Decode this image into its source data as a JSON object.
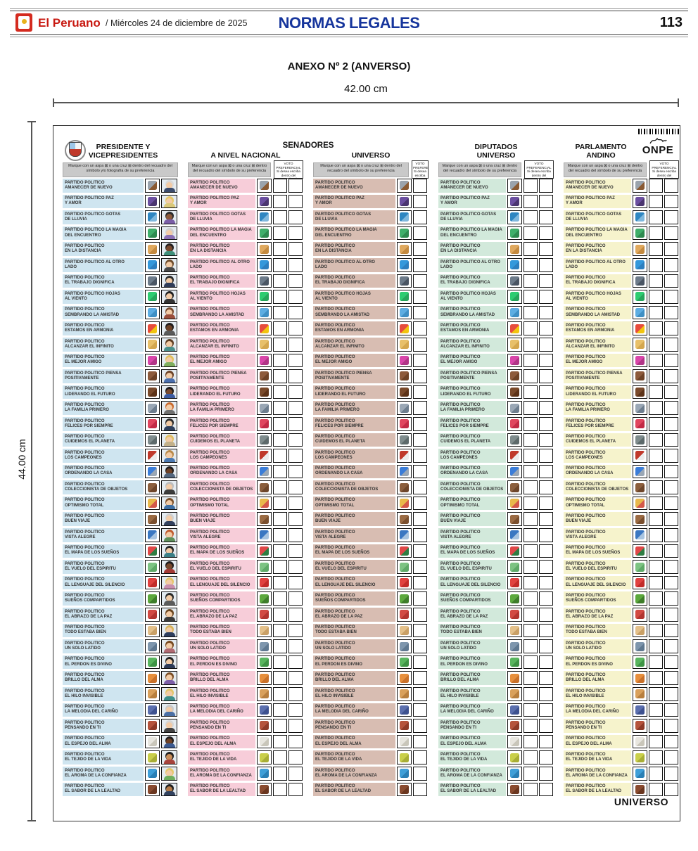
{
  "header": {
    "newspaper": "El Peruano",
    "date": "/ Miércoles 24 de diciembre de 2025",
    "section": "NORMAS LEGALES",
    "page_number": "113"
  },
  "title": "ANEXO Nº 2 (ANVERSO)",
  "dimensions": {
    "width_label": "42.00  cm",
    "height_label": "44.00  cm"
  },
  "ballot": {
    "group_header": "SENADORES",
    "footer_label": "UNIVERSO",
    "onpe_label": "ONPE",
    "instructions": {
      "symbol_photo": "Marque con un aspa ⊠ o una cruz ⊞ dentro del recuadro del símbolo y/o fotografía de su preferencia",
      "symbol": "Marque con un aspa ⊠ o una cruz ⊞ dentro del recuadro del símbolo de su preferencia"
    },
    "preferential_note": "VOTO PREFERENCIAL Si desea escriba dentro del recuadro el número del candidato de su preferencia",
    "columns": [
      {
        "key": "presidente",
        "title_lines": [
          "PRESIDENTE Y",
          "VICEPRESIDENTES"
        ],
        "bg": "#cfe5f0",
        "pref_boxes": 0,
        "has_photo": true,
        "instruction": "symbol_photo",
        "coat_of_arms": true
      },
      {
        "key": "senadores-nacional",
        "title_lines": [
          "A NIVEL NACIONAL"
        ],
        "bg": "#f7cdd9",
        "pref_boxes": 2,
        "has_photo": false,
        "instruction": "symbol"
      },
      {
        "key": "senadores-universo",
        "title_lines": [
          "UNIVERSO"
        ],
        "bg": "#d8bdb2",
        "pref_boxes": 1,
        "has_photo": false,
        "instruction": "symbol"
      },
      {
        "key": "diputados-universo",
        "title_lines": [
          "DIPUTADOS",
          "UNIVERSO"
        ],
        "bg": "#d2e9db",
        "pref_boxes": 2,
        "has_photo": false,
        "instruction": "symbol"
      },
      {
        "key": "parlamento-andino",
        "title_lines": [
          "PARLAMENTO",
          "ANDINO"
        ],
        "bg": "#f6f3cc",
        "pref_boxes": 2,
        "has_photo": false,
        "instruction": "symbol",
        "onpe": true,
        "barcode": true
      }
    ],
    "parties": [
      {
        "l1": "PARTIDO POLITICO",
        "l2": "AMANECER DE NUEVO",
        "icon": "handsaw-icon",
        "c1": "#9aa3ad",
        "c2": "#8a5a33",
        "skin": "#f2cba6",
        "hair": "#d8d8d8",
        "shirt": "#3a4a6b"
      },
      {
        "l1": "PARTIDO POLITICO PAZ",
        "l2": "Y AMOR",
        "icon": "umbrella-icon",
        "c1": "#6b4fa0",
        "c2": "#4a3570",
        "skin": "#f2cba6",
        "hair": "#e7c766",
        "shirt": "#d9c879"
      },
      {
        "l1": "PARTIDO POLITICO GOTAS",
        "l2": "DE LLUVIA",
        "icon": "bucket-icon",
        "c1": "#2e86c1",
        "c2": "#7fb8dd",
        "skin": "#8d5a3b",
        "hair": "#2b2b2b",
        "shirt": "#7b5ea7"
      },
      {
        "l1": "PARTIDO POLITICO LA MAGIA",
        "l2": "DEL ENCUENTRO",
        "icon": "tshirt-icon",
        "c1": "#3fae6a",
        "c2": "#2e8a50",
        "skin": "#f2cba6",
        "hair": "#cfcfcf",
        "shirt": "#8a6fb3"
      },
      {
        "l1": "PARTIDO POLITICO",
        "l2": "EN LA DISTANCIA",
        "icon": "bread-icon",
        "c1": "#e0a95e",
        "c2": "#c48a3f",
        "skin": "#7a4a2e",
        "hair": "#241f1f",
        "shirt": "#3f8f7a"
      },
      {
        "l1": "PARTIDO POLITICO AL OTRO",
        "l2": "LADO",
        "icon": "blue-panel-icon",
        "c1": "#3498db",
        "c2": "#2d7fbf",
        "skin": "#f2cba6",
        "hair": "#6e4b2a",
        "shirt": "#474747"
      },
      {
        "l1": "PARTIDO POLITICO",
        "l2": "EL TRABAJO DIGNIFICA",
        "icon": "hammer-icon",
        "c1": "#6d7b8a",
        "c2": "#4a5563",
        "skin": "#f2cba6",
        "hair": "#2b2b2b",
        "shirt": "#2f3c58"
      },
      {
        "l1": "PARTIDO POLITICO HOJAS",
        "l2": "AL VIENTO",
        "icon": "clover-icon",
        "c1": "#2ecc71",
        "c2": "#27a65c",
        "skin": "#f2cba6",
        "hair": "#1f1f1f",
        "shirt": "#333333"
      },
      {
        "l1": "PARTIDO POLITICO",
        "l2": "SEMBRANDO LA AMISTAD",
        "icon": "socks-icon",
        "c1": "#5dade2",
        "c2": "#3f8fc4",
        "skin": "#f2cba6",
        "hair": "#7a4a2e",
        "shirt": "#9c4f3c"
      },
      {
        "l1": "PARTIDO POLITICO",
        "l2": "ESTAMOS EN ARMONIA",
        "icon": "firecracker-icon",
        "c1": "#e74c3c",
        "c2": "#f1c40f",
        "skin": "#6f4226",
        "hair": "#211d1d",
        "shirt": "#5a5a5a"
      },
      {
        "l1": "PARTIDO POLITICO",
        "l2": "ALCANZAR EL INFINITO",
        "icon": "hand-icon",
        "c1": "#e8c06a",
        "c2": "#d4a74f",
        "skin": "#f2cba6",
        "hair": "#5f3d22",
        "shirt": "#4a8f8a"
      },
      {
        "l1": "PARTIDO POLITICO",
        "l2": "EL MEJOR AMIGO",
        "icon": "butterfly-icon",
        "c1": "#d946aa",
        "c2": "#b13587",
        "skin": "#f2cba6",
        "hair": "#e3c05c",
        "shirt": "#7fae5e"
      },
      {
        "l1": "PARTIDO POLITICO PIENSA",
        "l2": "POSITIVAMENTE",
        "icon": "monkey-icon",
        "c1": "#8d5a3b",
        "c2": "#6e4226",
        "skin": "#f2cba6",
        "hair": "#6b4226",
        "shirt": "#4a6fae"
      },
      {
        "l1": "PARTIDO POLITICO",
        "l2": "LIDERANDO EL FUTURO",
        "icon": "violin-icon",
        "c1": "#7a4a2b",
        "c2": "#5d3318",
        "skin": "#7a4a2e",
        "hair": "#1f1b1b",
        "shirt": "#3b5aa0"
      },
      {
        "l1": "PARTIDO POLITICO",
        "l2": "LA FAMILIA PRIMERO",
        "icon": "sneaker-icon",
        "c1": "#9aa7b5",
        "c2": "#6d7d8e",
        "skin": "#f2cba6",
        "hair": "#c96a2e",
        "shirt": "#707070"
      },
      {
        "l1": "PARTIDO POLITICO",
        "l2": "FELICES POR SIEMPRE",
        "icon": "telephone-receiver-icon",
        "c1": "#e0455e",
        "c2": "#c22a45",
        "skin": "#f2cba6",
        "hair": "#2a2a2a",
        "shirt": "#2e3f5c"
      },
      {
        "l1": "PARTIDO POLITICO",
        "l2": "CUIDEMOS EL PLANETA",
        "icon": "bicycle-icon",
        "c1": "#7f8c8d",
        "c2": "#5d6a6b",
        "skin": "#f2cba6",
        "hair": "#e0be62",
        "shirt": "#c2b089"
      },
      {
        "l1": "PARTIDO POLITICO",
        "l2": "LOS CAMPEONES",
        "icon": "target-icon",
        "c1": "#c0392b",
        "c2": "#ececec",
        "skin": "#f2cba6",
        "hair": "#b98a4a",
        "shirt": "#4a78b0"
      },
      {
        "l1": "PARTIDO POLITICO",
        "l2": "ORDENANDO LA CASA",
        "icon": "airplane-icon",
        "c1": "#3b7dd8",
        "c2": "#9aa7b5",
        "skin": "#6f4226",
        "hair": "#1f1b1b",
        "shirt": "#53677f"
      },
      {
        "l1": "PARTIDO POLITICO",
        "l2": "COLECCIONISTA DE OBJETOS",
        "icon": "briefcase-icon",
        "c1": "#8b5e3c",
        "c2": "#6e462a",
        "skin": "#f2cba6",
        "hair": "#bdbdbd",
        "shirt": "#3c3c3c"
      },
      {
        "l1": "PARTIDO POLITICO",
        "l2": "OPTIMISMO TOTAL",
        "icon": "crayons-icon",
        "c1": "#e8b84b",
        "c2": "#d3584a",
        "skin": "#f2cba6",
        "hair": "#7c4f28",
        "shirt": "#3e6fa3"
      },
      {
        "l1": "PARTIDO POLITICO",
        "l2": "BUEN VIAJE",
        "icon": "bear-icon",
        "c1": "#9b6b43",
        "c2": "#7a4f2e",
        "skin": "#f2cba6",
        "hair": "#cfcfcf",
        "shirt": "#33415e"
      },
      {
        "l1": "PARTIDO POLITICO",
        "l2": "VISTA ALEGRE",
        "icon": "monitor-icon",
        "c1": "#3a77c2",
        "c2": "#a8c4e0",
        "skin": "#f2cba6",
        "hair": "#c05a2e",
        "shirt": "#5e8f5a"
      },
      {
        "l1": "PARTIDO POLITICO",
        "l2": "EL MAPA DE LOS SUEÑOS",
        "icon": "watermelon-icon",
        "c1": "#e04848",
        "c2": "#2e7d42",
        "skin": "#f2cba6",
        "hair": "#242424",
        "shirt": "#3a7f86"
      },
      {
        "l1": "PARTIDO POLITICO",
        "l2": "EL VUELO DEL ESPIRITU",
        "icon": "alien-icon",
        "c1": "#7dc383",
        "c2": "#5ea967",
        "skin": "#7a4a2e",
        "hair": "#1f1b1b",
        "shirt": "#a43a35"
      },
      {
        "l1": "PARTIDO POLITICO",
        "l2": "EL LENGUAJE DEL SILENCIO",
        "icon": "balloon-icon",
        "c1": "#e0413f",
        "c2": "#c22b29",
        "skin": "#f2cba6",
        "hair": "#e5c468",
        "shirt": "#c98fae"
      },
      {
        "l1": "PARTIDO POLITICO",
        "l2": "SUEÑOS COMPARTIDOS",
        "icon": "avocado-icon",
        "c1": "#5ca83d",
        "c2": "#3e7d2a",
        "skin": "#f2cba6",
        "hair": "#2a2a2a",
        "shirt": "#5b5b5b"
      },
      {
        "l1": "PARTIDO POLITICO",
        "l2": "EL ABRAZO DE LA PAZ",
        "icon": "sweater-icon",
        "c1": "#d24a43",
        "c2": "#b23530",
        "skin": "#f2cba6",
        "hair": "#6a451f",
        "shirt": "#3a3a3a"
      },
      {
        "l1": "PARTIDO POLITICO",
        "l2": "TODO ESTABA BIEN",
        "icon": "cookie-icon",
        "c1": "#e3c08a",
        "c2": "#c9a066",
        "skin": "#f2cba6",
        "hair": "#d9b45a",
        "shirt": "#2e3e5e"
      },
      {
        "l1": "PARTIDO POLITICO",
        "l2": "UN SOLO LATIDO",
        "icon": "cat-icon",
        "c1": "#7e96ad",
        "c2": "#5f7890",
        "skin": "#f2cba6",
        "hair": "#76481f",
        "shirt": "#b06a72"
      },
      {
        "l1": "PARTIDO POLITICO",
        "l2": "EL PERDON ES DIVINO",
        "icon": "truck-icon",
        "c1": "#58b55e",
        "c2": "#3e9445",
        "skin": "#f2cba6",
        "hair": "#222222",
        "shirt": "#2c3a57"
      },
      {
        "l1": "PARTIDO POLITICO",
        "l2": "BRILLO DEL ALMA",
        "icon": "alarm-clock-icon",
        "c1": "#e78f3c",
        "c2": "#c9712a",
        "skin": "#f2cba6",
        "hair": "#7b4d24",
        "shirt": "#7d5fa8"
      },
      {
        "l1": "PARTIDO POLITICO",
        "l2": "EL HILO INVISIBLE",
        "icon": "pretzel-icon",
        "c1": "#d9a05b",
        "c2": "#b87f3e",
        "skin": "#f2cba6",
        "hair": "#e2c468",
        "shirt": "#3f8f8a"
      },
      {
        "l1": "PARTIDO POLITICO",
        "l2": "LA MELODIA DEL CARIÑO",
        "icon": "graduation-cap-icon",
        "c1": "#5b6fae",
        "c2": "#3e5290",
        "skin": "#f2cba6",
        "hair": "#c9c9c9",
        "shirt": "#4a6fa5"
      },
      {
        "l1": "PARTIDO POLITICO",
        "l2": "PENSANDO EN TI",
        "icon": "guitar-icon",
        "c1": "#b5533c",
        "c2": "#8e3a28",
        "skin": "#f2cba6",
        "hair": "#d5d5d5",
        "shirt": "#3f3f3f"
      },
      {
        "l1": "PARTIDO POLITICO",
        "l2": "EL ESPEJO DEL ALMA",
        "icon": "bone-icon",
        "c1": "#e8e6df",
        "c2": "#c9c6ba",
        "skin": "#6f4226",
        "hair": "#1f1b1b",
        "shirt": "#3b5a91"
      },
      {
        "l1": "PARTIDO POLITICO",
        "l2": "EL TEJIDO DE LA VIDA",
        "icon": "taxi-icon",
        "c1": "#c9cf4a",
        "c2": "#a8ae35",
        "skin": "#c98e5a",
        "hair": "#1f1f1f",
        "shirt": "#a8433c"
      },
      {
        "l1": "PARTIDO POLITICO",
        "l2": "EL AROMA DE LA CONFIANZA",
        "icon": "dolphin-icon",
        "c1": "#3f9fd8",
        "c2": "#2a7fb5",
        "skin": "#f2cba6",
        "hair": "#e6c76a",
        "shirt": "#6fae5e"
      },
      {
        "l1": "PARTIDO POLITICO",
        "l2": "EL SABOR DE LA LEALTAD",
        "icon": "chair-icon",
        "c1": "#8a4b2f",
        "c2": "#6b3720",
        "skin": "#b57b48",
        "hair": "#1f1f1f",
        "shirt": "#31425f"
      }
    ]
  }
}
